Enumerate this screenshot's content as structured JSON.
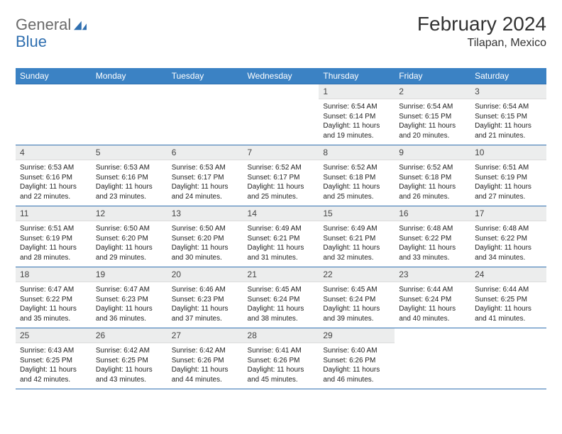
{
  "brand": {
    "word1": "General",
    "word2": "Blue"
  },
  "title": {
    "month": "February 2024",
    "location": "Tilapan, Mexico"
  },
  "colors": {
    "header_bg": "#3b82c4",
    "header_text": "#ffffff",
    "rule": "#2f6fb0",
    "daynum_bg": "#eceded",
    "body_text": "#222222",
    "logo_grey": "#6a6a6a",
    "logo_blue": "#2f6fb0"
  },
  "weekdays": [
    "Sunday",
    "Monday",
    "Tuesday",
    "Wednesday",
    "Thursday",
    "Friday",
    "Saturday"
  ],
  "weeks": [
    [
      {
        "n": "",
        "sr": "",
        "ss": "",
        "dl": ""
      },
      {
        "n": "",
        "sr": "",
        "ss": "",
        "dl": ""
      },
      {
        "n": "",
        "sr": "",
        "ss": "",
        "dl": ""
      },
      {
        "n": "",
        "sr": "",
        "ss": "",
        "dl": ""
      },
      {
        "n": "1",
        "sr": "Sunrise: 6:54 AM",
        "ss": "Sunset: 6:14 PM",
        "dl": "Daylight: 11 hours and 19 minutes."
      },
      {
        "n": "2",
        "sr": "Sunrise: 6:54 AM",
        "ss": "Sunset: 6:15 PM",
        "dl": "Daylight: 11 hours and 20 minutes."
      },
      {
        "n": "3",
        "sr": "Sunrise: 6:54 AM",
        "ss": "Sunset: 6:15 PM",
        "dl": "Daylight: 11 hours and 21 minutes."
      }
    ],
    [
      {
        "n": "4",
        "sr": "Sunrise: 6:53 AM",
        "ss": "Sunset: 6:16 PM",
        "dl": "Daylight: 11 hours and 22 minutes."
      },
      {
        "n": "5",
        "sr": "Sunrise: 6:53 AM",
        "ss": "Sunset: 6:16 PM",
        "dl": "Daylight: 11 hours and 23 minutes."
      },
      {
        "n": "6",
        "sr": "Sunrise: 6:53 AM",
        "ss": "Sunset: 6:17 PM",
        "dl": "Daylight: 11 hours and 24 minutes."
      },
      {
        "n": "7",
        "sr": "Sunrise: 6:52 AM",
        "ss": "Sunset: 6:17 PM",
        "dl": "Daylight: 11 hours and 25 minutes."
      },
      {
        "n": "8",
        "sr": "Sunrise: 6:52 AM",
        "ss": "Sunset: 6:18 PM",
        "dl": "Daylight: 11 hours and 25 minutes."
      },
      {
        "n": "9",
        "sr": "Sunrise: 6:52 AM",
        "ss": "Sunset: 6:18 PM",
        "dl": "Daylight: 11 hours and 26 minutes."
      },
      {
        "n": "10",
        "sr": "Sunrise: 6:51 AM",
        "ss": "Sunset: 6:19 PM",
        "dl": "Daylight: 11 hours and 27 minutes."
      }
    ],
    [
      {
        "n": "11",
        "sr": "Sunrise: 6:51 AM",
        "ss": "Sunset: 6:19 PM",
        "dl": "Daylight: 11 hours and 28 minutes."
      },
      {
        "n": "12",
        "sr": "Sunrise: 6:50 AM",
        "ss": "Sunset: 6:20 PM",
        "dl": "Daylight: 11 hours and 29 minutes."
      },
      {
        "n": "13",
        "sr": "Sunrise: 6:50 AM",
        "ss": "Sunset: 6:20 PM",
        "dl": "Daylight: 11 hours and 30 minutes."
      },
      {
        "n": "14",
        "sr": "Sunrise: 6:49 AM",
        "ss": "Sunset: 6:21 PM",
        "dl": "Daylight: 11 hours and 31 minutes."
      },
      {
        "n": "15",
        "sr": "Sunrise: 6:49 AM",
        "ss": "Sunset: 6:21 PM",
        "dl": "Daylight: 11 hours and 32 minutes."
      },
      {
        "n": "16",
        "sr": "Sunrise: 6:48 AM",
        "ss": "Sunset: 6:22 PM",
        "dl": "Daylight: 11 hours and 33 minutes."
      },
      {
        "n": "17",
        "sr": "Sunrise: 6:48 AM",
        "ss": "Sunset: 6:22 PM",
        "dl": "Daylight: 11 hours and 34 minutes."
      }
    ],
    [
      {
        "n": "18",
        "sr": "Sunrise: 6:47 AM",
        "ss": "Sunset: 6:22 PM",
        "dl": "Daylight: 11 hours and 35 minutes."
      },
      {
        "n": "19",
        "sr": "Sunrise: 6:47 AM",
        "ss": "Sunset: 6:23 PM",
        "dl": "Daylight: 11 hours and 36 minutes."
      },
      {
        "n": "20",
        "sr": "Sunrise: 6:46 AM",
        "ss": "Sunset: 6:23 PM",
        "dl": "Daylight: 11 hours and 37 minutes."
      },
      {
        "n": "21",
        "sr": "Sunrise: 6:45 AM",
        "ss": "Sunset: 6:24 PM",
        "dl": "Daylight: 11 hours and 38 minutes."
      },
      {
        "n": "22",
        "sr": "Sunrise: 6:45 AM",
        "ss": "Sunset: 6:24 PM",
        "dl": "Daylight: 11 hours and 39 minutes."
      },
      {
        "n": "23",
        "sr": "Sunrise: 6:44 AM",
        "ss": "Sunset: 6:24 PM",
        "dl": "Daylight: 11 hours and 40 minutes."
      },
      {
        "n": "24",
        "sr": "Sunrise: 6:44 AM",
        "ss": "Sunset: 6:25 PM",
        "dl": "Daylight: 11 hours and 41 minutes."
      }
    ],
    [
      {
        "n": "25",
        "sr": "Sunrise: 6:43 AM",
        "ss": "Sunset: 6:25 PM",
        "dl": "Daylight: 11 hours and 42 minutes."
      },
      {
        "n": "26",
        "sr": "Sunrise: 6:42 AM",
        "ss": "Sunset: 6:25 PM",
        "dl": "Daylight: 11 hours and 43 minutes."
      },
      {
        "n": "27",
        "sr": "Sunrise: 6:42 AM",
        "ss": "Sunset: 6:26 PM",
        "dl": "Daylight: 11 hours and 44 minutes."
      },
      {
        "n": "28",
        "sr": "Sunrise: 6:41 AM",
        "ss": "Sunset: 6:26 PM",
        "dl": "Daylight: 11 hours and 45 minutes."
      },
      {
        "n": "29",
        "sr": "Sunrise: 6:40 AM",
        "ss": "Sunset: 6:26 PM",
        "dl": "Daylight: 11 hours and 46 minutes."
      },
      {
        "n": "",
        "sr": "",
        "ss": "",
        "dl": ""
      },
      {
        "n": "",
        "sr": "",
        "ss": "",
        "dl": ""
      }
    ]
  ]
}
